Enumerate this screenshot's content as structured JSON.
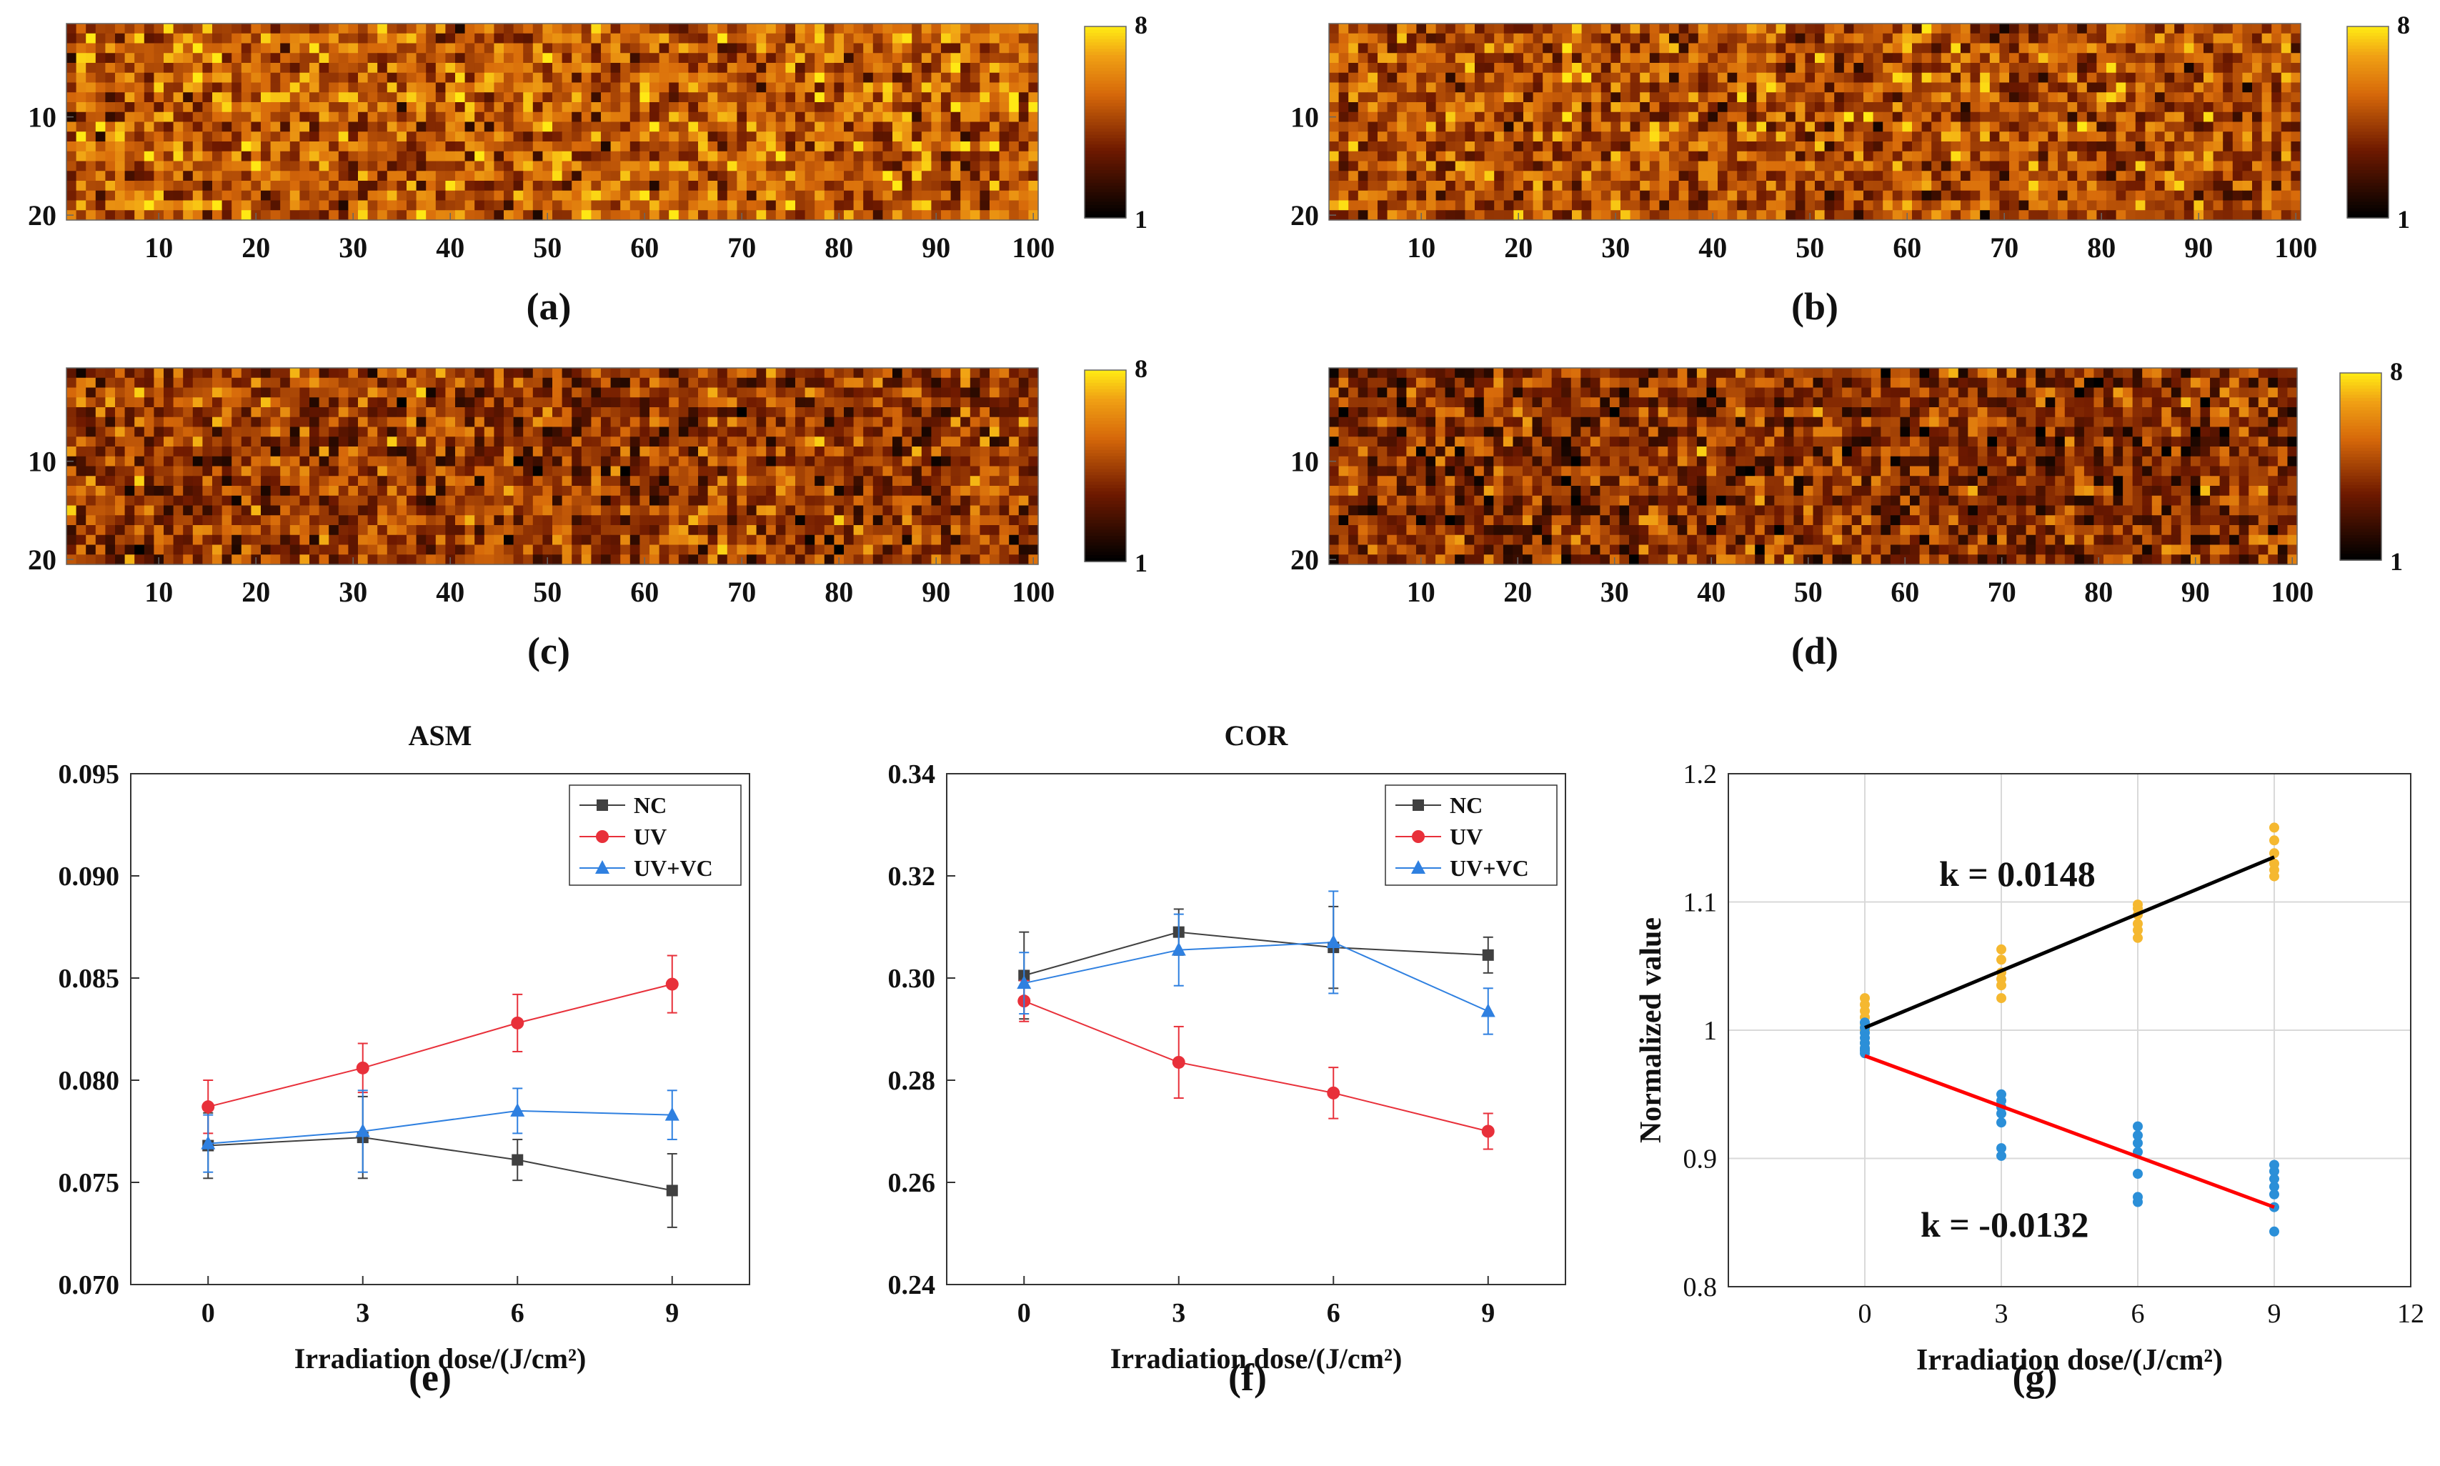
{
  "colors": {
    "nc": "#404040",
    "uv": "#e8303a",
    "uvvc": "#2f80e0",
    "fit_up": "#000000",
    "fit_down": "#ff0000",
    "pts_up": "#f5b830",
    "pts_down": "#2b8fd8",
    "grid": "#d9d9d9"
  },
  "panel_labels": [
    "(a)",
    "(b)",
    "(c)",
    "(d)",
    "(e)",
    "(f)",
    "(g)"
  ],
  "chart_data": [
    {
      "id": "a",
      "type": "heatmap",
      "label": "(a)",
      "x_ticks": [
        10,
        20,
        30,
        40,
        50,
        60,
        70,
        80,
        90,
        100
      ],
      "y_ticks": [
        10,
        20
      ],
      "cols": 100,
      "rows": 20,
      "colorbar": {
        "min": 1,
        "max": 8,
        "min_label": "1",
        "max_label": "8"
      },
      "mean_level": 5.2,
      "seed": 11
    },
    {
      "id": "b",
      "type": "heatmap",
      "label": "(b)",
      "x_ticks": [
        10,
        20,
        30,
        40,
        50,
        60,
        70,
        80,
        90,
        100
      ],
      "y_ticks": [
        10,
        20
      ],
      "cols": 100,
      "rows": 20,
      "colorbar": {
        "min": 1,
        "max": 8,
        "min_label": "1",
        "max_label": "8"
      },
      "mean_level": 4.9,
      "seed": 23
    },
    {
      "id": "c",
      "type": "heatmap",
      "label": "(c)",
      "x_ticks": [
        10,
        20,
        30,
        40,
        50,
        60,
        70,
        80,
        90,
        100
      ],
      "y_ticks": [
        10,
        20
      ],
      "cols": 100,
      "rows": 20,
      "colorbar": {
        "min": 1,
        "max": 8,
        "min_label": "1",
        "max_label": "8"
      },
      "mean_level": 4.3,
      "seed": 37
    },
    {
      "id": "d",
      "type": "heatmap",
      "label": "(d)",
      "x_ticks": [
        10,
        20,
        30,
        40,
        50,
        60,
        70,
        80,
        90,
        100
      ],
      "y_ticks": [
        10,
        20
      ],
      "cols": 100,
      "rows": 20,
      "colorbar": {
        "min": 1,
        "max": 8,
        "min_label": "1",
        "max_label": "8"
      },
      "mean_level": 4.0,
      "seed": 53
    },
    {
      "id": "e",
      "type": "line",
      "label": "(e)",
      "title": "ASM",
      "xlabel": "Irradiation dose/(J/cm²)",
      "ylabel": "",
      "x": [
        0,
        3,
        6,
        9
      ],
      "xlim": [
        -1.5,
        10.5
      ],
      "ylim": [
        0.07,
        0.095
      ],
      "y_ticks": [
        "0.070",
        "0.075",
        "0.080",
        "0.085",
        "0.090",
        "0.095"
      ],
      "x_ticks": [
        "0",
        "3",
        "6",
        "9"
      ],
      "legend_loc": "top-right",
      "series": [
        {
          "name": "NC",
          "marker": "square",
          "color_key": "nc",
          "values": [
            0.0768,
            0.0772,
            0.0761,
            0.0746
          ],
          "err": [
            0.0016,
            0.002,
            0.001,
            0.0018
          ]
        },
        {
          "name": "UV",
          "marker": "circle",
          "color_key": "uv",
          "values": [
            0.0787,
            0.0806,
            0.0828,
            0.0847
          ],
          "err": [
            0.0013,
            0.0012,
            0.0014,
            0.0014
          ]
        },
        {
          "name": "UV+VC",
          "marker": "triangle",
          "color_key": "uvvc",
          "values": [
            0.0769,
            0.0775,
            0.0785,
            0.0783
          ],
          "err": [
            0.0014,
            0.002,
            0.0011,
            0.0012
          ]
        }
      ]
    },
    {
      "id": "f",
      "type": "line",
      "label": "(f)",
      "title": "COR",
      "xlabel": "Irradiation dose/(J/cm²)",
      "ylabel": "",
      "x": [
        0,
        3,
        6,
        9
      ],
      "xlim": [
        -1.5,
        10.5
      ],
      "ylim": [
        0.24,
        0.34
      ],
      "y_ticks": [
        "0.24",
        "0.26",
        "0.28",
        "0.30",
        "0.32",
        "0.34"
      ],
      "x_ticks": [
        "0",
        "3",
        "6",
        "9"
      ],
      "legend_loc": "top-right",
      "series": [
        {
          "name": "NC",
          "marker": "square",
          "color_key": "nc",
          "values": [
            0.3005,
            0.309,
            0.306,
            0.3045
          ],
          "err": [
            0.0085,
            0.0045,
            0.008,
            0.0035
          ]
        },
        {
          "name": "UV",
          "marker": "circle",
          "color_key": "uv",
          "values": [
            0.2955,
            0.2835,
            0.2775,
            0.27
          ],
          "err": [
            0.004,
            0.007,
            0.005,
            0.0035
          ]
        },
        {
          "name": "UV+VC",
          "marker": "triangle",
          "color_key": "uvvc",
          "values": [
            0.299,
            0.3055,
            0.307,
            0.2935
          ],
          "err": [
            0.006,
            0.007,
            0.01,
            0.0045
          ]
        }
      ]
    },
    {
      "id": "g",
      "type": "scatter",
      "label": "(g)",
      "title": "",
      "xlabel": "Irradiation dose/(J/cm²)",
      "ylabel": "Normalized value",
      "xlim": [
        -3,
        12
      ],
      "ylim": [
        0.8,
        1.2
      ],
      "x_ticks": [
        "0",
        "3",
        "6",
        "9",
        "12"
      ],
      "y_ticks": [
        "0.8",
        "0.9",
        "1",
        "1.1",
        "1.2"
      ],
      "grid": true,
      "annotations": [
        "k = 0.0148",
        "k =  -0.0132"
      ],
      "fits": [
        {
          "name": "increasing",
          "color_key": "fit_up",
          "x": [
            0,
            9
          ],
          "y": [
            1.002,
            1.135
          ],
          "slope": 0.0148
        },
        {
          "name": "decreasing",
          "color_key": "fit_down",
          "x": [
            0,
            9
          ],
          "y": [
            0.98,
            0.862
          ],
          "slope": -0.0132
        }
      ],
      "series": [
        {
          "name": "increasing points",
          "color_key": "pts_up",
          "x": [
            0,
            0,
            0,
            0,
            0,
            0,
            0,
            0,
            3,
            3,
            3,
            3,
            3,
            3,
            6,
            6,
            6,
            6,
            6,
            6,
            9,
            9,
            9,
            9,
            9,
            9
          ],
          "y": [
            0.985,
            0.99,
            1.0,
            1.005,
            1.01,
            1.015,
            1.02,
            1.025,
            1.025,
            1.035,
            1.04,
            1.045,
            1.055,
            1.063,
            1.072,
            1.078,
            1.083,
            1.09,
            1.095,
            1.098,
            1.12,
            1.125,
            1.13,
            1.138,
            1.148,
            1.158
          ]
        },
        {
          "name": "decreasing points",
          "color_key": "pts_down",
          "x": [
            0,
            0,
            0,
            0,
            0,
            0,
            0,
            0,
            3,
            3,
            3,
            3,
            3,
            3,
            3,
            6,
            6,
            6,
            6,
            6,
            6,
            6,
            9,
            9,
            9,
            9,
            9,
            9,
            9
          ],
          "y": [
            0.982,
            0.986,
            0.99,
            0.994,
            0.998,
            1.002,
            1.006,
            0.984,
            0.902,
            0.908,
            0.928,
            0.935,
            0.94,
            0.945,
            0.95,
            0.866,
            0.87,
            0.888,
            0.905,
            0.912,
            0.918,
            0.925,
            0.843,
            0.862,
            0.872,
            0.878,
            0.884,
            0.89,
            0.895
          ]
        }
      ]
    }
  ]
}
